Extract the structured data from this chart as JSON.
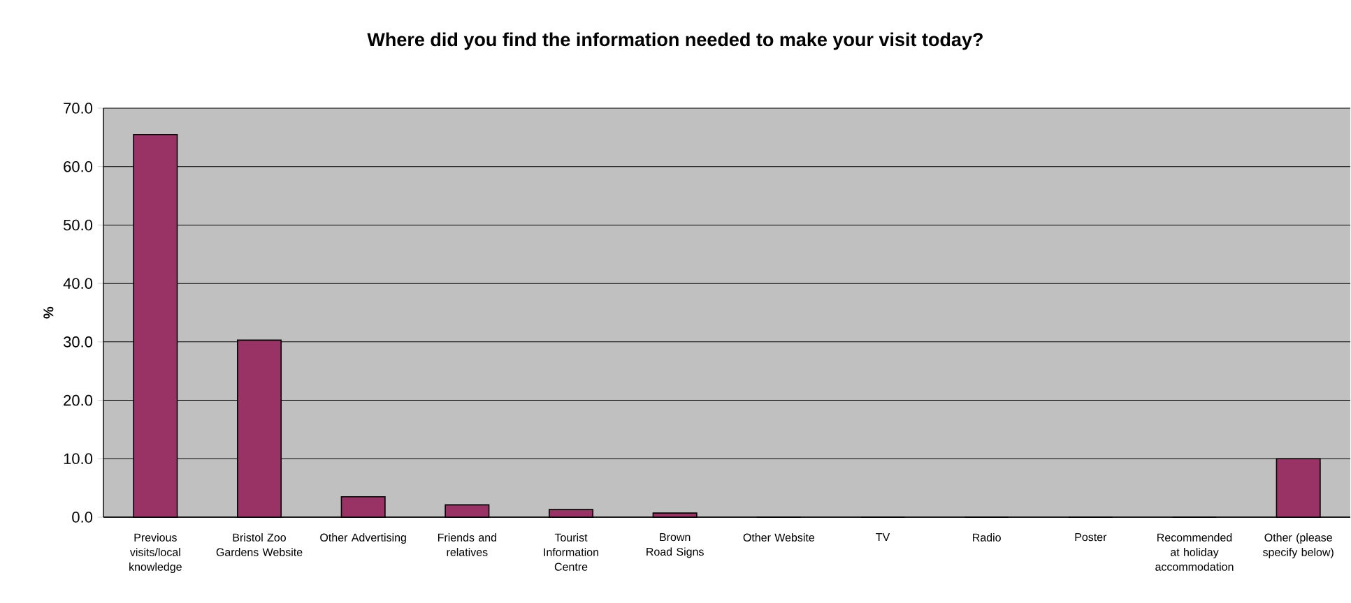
{
  "chart_data": {
    "type": "bar",
    "title": "Where did you find the information needed to make your visit today?",
    "ylabel": "%",
    "categories": [
      "Previous visits/local knowledge",
      "Bristol Zoo Gardens Website",
      "Other Advertising",
      "Friends and relatives",
      "Tourist Information Centre",
      "Brown Road Signs",
      "Other Website",
      "TV",
      "Radio",
      "Poster",
      "Recommended at holiday accommodation",
      "Other (please specify below)"
    ],
    "values": [
      65.5,
      30.3,
      3.5,
      2.1,
      1.3,
      0.7,
      0,
      0,
      0,
      0,
      0,
      10.0
    ],
    "color": "#993366",
    "ylim": [
      0,
      70
    ],
    "yticks": [
      {
        "value": 0,
        "label": "0.0"
      },
      {
        "value": 10,
        "label": "10.0"
      },
      {
        "value": 20,
        "label": "20.0"
      },
      {
        "value": 30,
        "label": "30.0"
      },
      {
        "value": 40,
        "label": "40.0"
      },
      {
        "value": 50,
        "label": "50.0"
      },
      {
        "value": 60,
        "label": "60.0"
      },
      {
        "value": 70,
        "label": "70.0"
      }
    ],
    "grid": "y"
  }
}
